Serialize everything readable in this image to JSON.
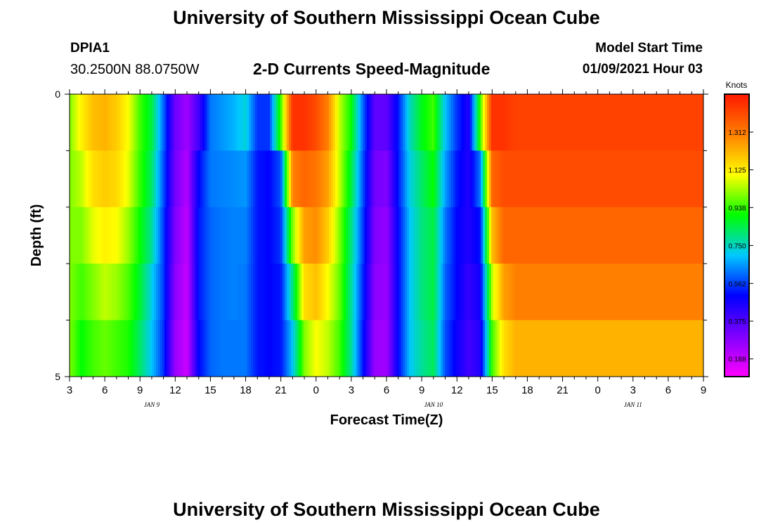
{
  "header": {
    "title": "University of Southern Mississippi Ocean Cube",
    "station": "DPIA1",
    "coordinates": "30.2500N 88.0750W",
    "chart_title": "2-D Currents Speed-Magnitude",
    "model_start_label": "Model Start Time",
    "model_start_value": "01/09/2021 Hour 03"
  },
  "footer": {
    "title": "University of Southern Mississippi Ocean Cube"
  },
  "chart_data": {
    "type": "heatmap",
    "title": "2-D Currents Speed-Magnitude",
    "xlabel": "Forecast Time(Z)",
    "ylabel": "Depth (ft)",
    "units_label": "Knots",
    "x_tick_labels": [
      "3",
      "6",
      "9",
      "12",
      "15",
      "18",
      "21",
      "0",
      "3",
      "6",
      "9",
      "12",
      "15",
      "18",
      "21",
      "0",
      "3",
      "6",
      "9"
    ],
    "date_labels": [
      {
        "text": "JAN 9",
        "at_hour": 10
      },
      {
        "text": "JAN 10",
        "at_hour": 34
      },
      {
        "text": "JAN 11",
        "at_hour": 51
      }
    ],
    "x_range_hours": [
      3,
      57
    ],
    "y_tick_labels": [
      "0",
      "5"
    ],
    "y_range_ft": [
      0,
      5
    ],
    "colorbar_ticks": [
      "0.188",
      "0.375",
      "0.562",
      "0.750",
      "0.938",
      "1.125",
      "1.312"
    ],
    "colorbar_range_knots": [
      0.1,
      1.5
    ],
    "colorbar_colors": [
      "#ff00ff",
      "#8000ff",
      "#0000ff",
      "#00c8ff",
      "#00ff00",
      "#ffff00",
      "#ff8000",
      "#ff1800"
    ],
    "speed_knots_by_hour_surface_to_bottom": [
      [
        1.0,
        1.0,
        1.0,
        1.0,
        1.0
      ],
      [
        1.12,
        1.05,
        1.0,
        0.95,
        0.9
      ],
      [
        1.2,
        1.15,
        1.08,
        1.0,
        0.95
      ],
      [
        1.22,
        1.18,
        1.12,
        1.05,
        0.98
      ],
      [
        1.18,
        1.16,
        1.1,
        1.02,
        0.95
      ],
      [
        1.1,
        1.08,
        1.02,
        0.96,
        0.92
      ],
      [
        0.95,
        0.94,
        0.9,
        0.86,
        0.82
      ],
      [
        0.85,
        0.82,
        0.78,
        0.72,
        0.7
      ],
      [
        0.6,
        0.58,
        0.56,
        0.56,
        0.55
      ],
      [
        0.33,
        0.32,
        0.3,
        0.28,
        0.26
      ],
      [
        0.25,
        0.22,
        0.2,
        0.19,
        0.18
      ],
      [
        0.4,
        0.5,
        0.52,
        0.52,
        0.5
      ],
      [
        0.62,
        0.62,
        0.6,
        0.6,
        0.6
      ],
      [
        0.65,
        0.63,
        0.62,
        0.62,
        0.62
      ],
      [
        0.68,
        0.64,
        0.63,
        0.63,
        0.62
      ],
      [
        0.73,
        0.65,
        0.63,
        0.62,
        0.62
      ],
      [
        0.55,
        0.52,
        0.52,
        0.52,
        0.52
      ],
      [
        0.55,
        0.5,
        0.5,
        0.5,
        0.5
      ],
      [
        0.95,
        0.58,
        0.55,
        0.52,
        0.52
      ],
      [
        1.45,
        1.3,
        1.0,
        0.8,
        0.7
      ],
      [
        1.45,
        1.35,
        1.25,
        1.15,
        1.0
      ],
      [
        1.4,
        1.32,
        1.28,
        1.2,
        1.1
      ],
      [
        1.3,
        1.25,
        1.18,
        1.1,
        1.05
      ],
      [
        1.05,
        1.05,
        1.0,
        0.98,
        0.95
      ],
      [
        0.9,
        0.85,
        0.8,
        0.78,
        0.78
      ],
      [
        0.6,
        0.58,
        0.56,
        0.54,
        0.52
      ],
      [
        0.35,
        0.32,
        0.3,
        0.28,
        0.26
      ],
      [
        0.35,
        0.3,
        0.27,
        0.26,
        0.25
      ],
      [
        0.52,
        0.52,
        0.5,
        0.5,
        0.5
      ],
      [
        0.75,
        0.72,
        0.7,
        0.7,
        0.7
      ],
      [
        0.88,
        0.82,
        0.8,
        0.8,
        0.78
      ],
      [
        0.95,
        0.9,
        0.85,
        0.85,
        0.83
      ],
      [
        0.7,
        0.66,
        0.62,
        0.6,
        0.58
      ],
      [
        0.55,
        0.52,
        0.5,
        0.5,
        0.48
      ],
      [
        0.45,
        0.45,
        0.45,
        0.42,
        0.4
      ],
      [
        0.95,
        0.62,
        0.52,
        0.48,
        0.45
      ],
      [
        1.45,
        1.35,
        1.2,
        1.05,
        0.95
      ],
      [
        1.45,
        1.4,
        1.35,
        1.25,
        1.15
      ],
      [
        1.42,
        1.4,
        1.35,
        1.3,
        1.22
      ]
    ]
  }
}
